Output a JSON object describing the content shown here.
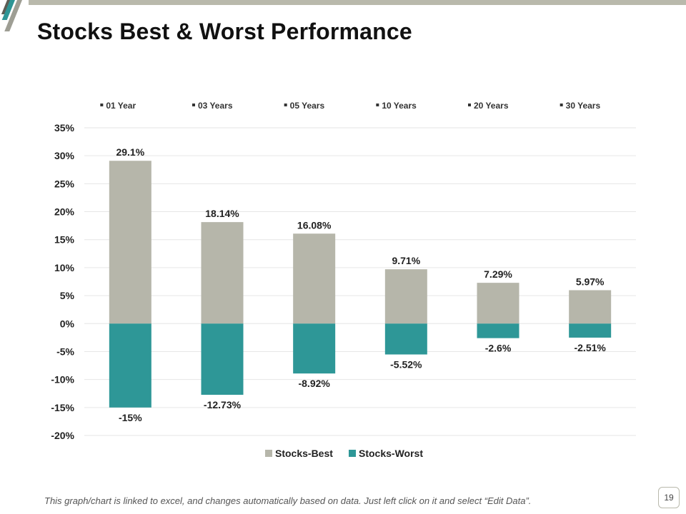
{
  "slide": {
    "title": "Stocks Best & Worst Performance",
    "footnote": "This graph/chart is linked to excel, and changes automatically based on data. Just left click on it and select “Edit Data”.",
    "page_number": "19"
  },
  "colors": {
    "best": "#b6b6aa",
    "worst": "#2e9797",
    "accent_band": "#b9b9ac"
  },
  "chart_data": {
    "type": "bar",
    "title": "",
    "categories": [
      "01 Year",
      "03 Years",
      "05 Years",
      "10 Years",
      "20 Years",
      "30 Years"
    ],
    "series": [
      {
        "name": "Stocks-Best",
        "values": [
          29.1,
          18.14,
          16.08,
          9.71,
          7.29,
          5.97
        ],
        "labels": [
          "29.1%",
          "18.14%",
          "16.08%",
          "9.71%",
          "7.29%",
          "5.97%"
        ]
      },
      {
        "name": "Stocks-Worst",
        "values": [
          -15,
          -12.73,
          -8.92,
          -5.52,
          -2.6,
          -2.51
        ],
        "labels": [
          "-15%",
          "-12.73%",
          "-8.92%",
          "-5.52%",
          "-2.6%",
          "-2.51%"
        ]
      }
    ],
    "y_ticks": [
      35,
      30,
      25,
      20,
      15,
      10,
      5,
      0,
      -5,
      -10,
      -15,
      -20
    ],
    "y_tick_labels": [
      "35%",
      "30%",
      "25%",
      "20%",
      "15%",
      "10%",
      "5%",
      "0%",
      "-5%",
      "-10%",
      "-15%",
      "-20%"
    ],
    "ylim": [
      -20,
      35
    ],
    "category_position": "top",
    "legend_position": "bottom",
    "grid": true
  }
}
